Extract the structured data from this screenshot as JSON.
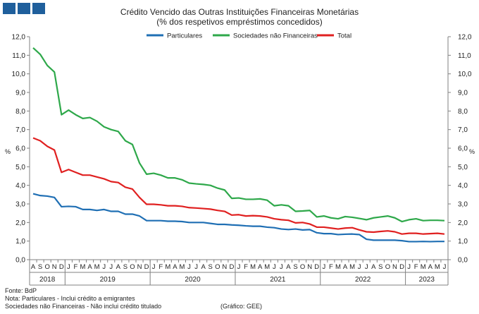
{
  "header": {
    "title": "Crédito Vencido das Outras Instituições Financeiras Monetárias",
    "subtitle": "(% dos respetivos empréstimos concedidos)"
  },
  "footer": {
    "source": "Fonte: BdP",
    "note1": "Nota: Particulares - Inclui crédito a emigrantes",
    "note2": "Sociedades não Financeiras - Não inclui crédito titulado",
    "credit": "(Gráfico: GEE)"
  },
  "colors": {
    "logo": "#1f5f9c",
    "axis": "#808080"
  },
  "chart_data": {
    "type": "line",
    "ylabel": "%",
    "ylabel_right": "%",
    "ylim": [
      0,
      12
    ],
    "yticks": [
      "0,0",
      "1,0",
      "2,0",
      "3,0",
      "4,0",
      "5,0",
      "6,0",
      "7,0",
      "8,0",
      "9,0",
      "10,0",
      "11,0",
      "12,0"
    ],
    "month_labels": [
      "A",
      "S",
      "O",
      "N",
      "D",
      "J",
      "F",
      "M",
      "A",
      "M",
      "J",
      "J",
      "A",
      "S",
      "O",
      "N",
      "D",
      "J",
      "F",
      "M",
      "A",
      "M",
      "J",
      "J",
      "A",
      "S",
      "O",
      "N",
      "D",
      "J",
      "F",
      "M",
      "A",
      "M",
      "J",
      "J",
      "A",
      "S",
      "O",
      "N",
      "D",
      "J",
      "F",
      "M",
      "A",
      "M",
      "J",
      "J",
      "A",
      "S",
      "O",
      "N",
      "D",
      "J",
      "F",
      "M",
      "A",
      "M",
      "J"
    ],
    "years": [
      {
        "label": "2018",
        "start": 0,
        "end": 4
      },
      {
        "label": "2019",
        "start": 5,
        "end": 16
      },
      {
        "label": "2020",
        "start": 17,
        "end": 28
      },
      {
        "label": "2021",
        "start": 29,
        "end": 40
      },
      {
        "label": "2022",
        "start": 41,
        "end": 52
      },
      {
        "label": "2023",
        "start": 53,
        "end": 58
      }
    ],
    "legend_position": "top-center",
    "series": [
      {
        "name": "Particulares",
        "color": "#1f6fb4",
        "values": [
          3.55,
          3.45,
          3.42,
          3.35,
          2.85,
          2.87,
          2.85,
          2.7,
          2.7,
          2.65,
          2.7,
          2.6,
          2.6,
          2.45,
          2.45,
          2.35,
          2.1,
          2.1,
          2.1,
          2.07,
          2.07,
          2.05,
          2.0,
          2.0,
          2.0,
          1.95,
          1.9,
          1.9,
          1.87,
          1.85,
          1.82,
          1.8,
          1.8,
          1.75,
          1.72,
          1.65,
          1.62,
          1.65,
          1.6,
          1.62,
          1.45,
          1.4,
          1.4,
          1.35,
          1.37,
          1.38,
          1.35,
          1.1,
          1.05,
          1.05,
          1.05,
          1.05,
          1.02,
          0.97,
          0.97,
          0.98,
          0.97,
          0.98,
          0.98
        ]
      },
      {
        "name": "Sociedades não Financeiras",
        "color": "#2ea84a",
        "values": [
          11.4,
          11.05,
          10.45,
          10.1,
          7.8,
          8.05,
          7.8,
          7.6,
          7.65,
          7.45,
          7.15,
          7.0,
          6.9,
          6.4,
          6.2,
          5.2,
          4.6,
          4.65,
          4.55,
          4.4,
          4.4,
          4.3,
          4.12,
          4.08,
          4.05,
          4.0,
          3.85,
          3.75,
          3.3,
          3.32,
          3.25,
          3.25,
          3.27,
          3.2,
          2.9,
          2.95,
          2.9,
          2.6,
          2.62,
          2.65,
          2.3,
          2.35,
          2.25,
          2.2,
          2.32,
          2.28,
          2.22,
          2.15,
          2.25,
          2.3,
          2.35,
          2.25,
          2.05,
          2.15,
          2.2,
          2.1,
          2.12,
          2.12,
          2.1
        ]
      },
      {
        "name": "Total",
        "color": "#e02020",
        "values": [
          6.55,
          6.4,
          6.1,
          5.9,
          4.7,
          4.85,
          4.7,
          4.55,
          4.55,
          4.45,
          4.35,
          4.2,
          4.15,
          3.9,
          3.8,
          3.35,
          2.98,
          2.98,
          2.95,
          2.9,
          2.9,
          2.87,
          2.8,
          2.78,
          2.75,
          2.72,
          2.65,
          2.6,
          2.4,
          2.42,
          2.35,
          2.37,
          2.35,
          2.3,
          2.2,
          2.15,
          2.12,
          1.98,
          2.0,
          1.92,
          1.75,
          1.75,
          1.7,
          1.65,
          1.7,
          1.72,
          1.6,
          1.5,
          1.48,
          1.52,
          1.55,
          1.5,
          1.38,
          1.42,
          1.42,
          1.38,
          1.4,
          1.42,
          1.38
        ]
      }
    ]
  }
}
